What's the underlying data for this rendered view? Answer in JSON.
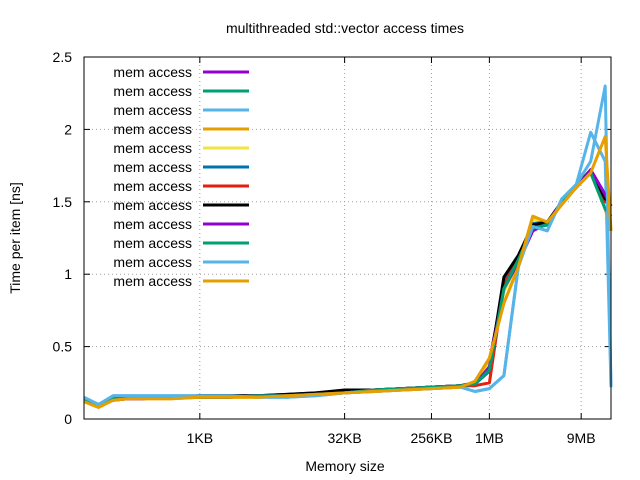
{
  "chart_data": {
    "type": "line",
    "title": "multithreaded std::vector access times",
    "xlabel": "Memory size",
    "ylabel": "Time per item [ns]",
    "x_scale": "log2",
    "x_ticks": [
      {
        "label": "1KB",
        "x": 10
      },
      {
        "label": "32KB",
        "x": 15
      },
      {
        "label": "256KB",
        "x": 18
      },
      {
        "label": "1MB",
        "x": 20
      },
      {
        "label": "9MB",
        "x": 23.17
      }
    ],
    "xlim": [
      6,
      24.2
    ],
    "ylim": [
      0,
      2.5
    ],
    "y_ticks": [
      0,
      0.5,
      1,
      1.5,
      2,
      2.5
    ],
    "grid": true,
    "legend_position": "top-left",
    "x": [
      6,
      6.5,
      7,
      7.5,
      8,
      9,
      10,
      11,
      12,
      13,
      14,
      15,
      16,
      17,
      18,
      19,
      19.5,
      20,
      20.5,
      21,
      21.5,
      22,
      22.5,
      23,
      23.5,
      24,
      24.2
    ],
    "series": [
      {
        "name": "mem access",
        "color": "#9400d3",
        "values": [
          0.13,
          0.09,
          0.13,
          0.14,
          0.14,
          0.15,
          0.15,
          0.15,
          0.16,
          0.16,
          0.17,
          0.18,
          0.2,
          0.21,
          0.22,
          0.23,
          0.25,
          0.4,
          0.92,
          1.08,
          1.3,
          1.35,
          1.5,
          1.6,
          1.72,
          1.55,
          1.47
        ]
      },
      {
        "name": "mem access",
        "color": "#009e73",
        "values": [
          0.14,
          0.1,
          0.14,
          0.14,
          0.15,
          0.15,
          0.15,
          0.15,
          0.16,
          0.16,
          0.17,
          0.18,
          0.2,
          0.21,
          0.22,
          0.23,
          0.24,
          0.35,
          0.9,
          1.1,
          1.32,
          1.34,
          1.49,
          1.6,
          1.7,
          1.45,
          1.4
        ]
      },
      {
        "name": "mem access",
        "color": "#56b4e9",
        "values": [
          0.15,
          0.1,
          0.16,
          0.16,
          0.16,
          0.16,
          0.16,
          0.16,
          0.15,
          0.15,
          0.16,
          0.18,
          0.19,
          0.2,
          0.21,
          0.22,
          0.19,
          0.21,
          0.3,
          1.05,
          1.33,
          1.3,
          1.52,
          1.62,
          1.98,
          1.78,
          0.22
        ]
      },
      {
        "name": "mem access",
        "color": "#e69f00",
        "values": [
          0.12,
          0.08,
          0.13,
          0.14,
          0.14,
          0.14,
          0.15,
          0.15,
          0.15,
          0.16,
          0.17,
          0.18,
          0.19,
          0.2,
          0.21,
          0.22,
          0.26,
          0.42,
          0.8,
          1.05,
          1.4,
          1.36,
          1.48,
          1.6,
          1.7,
          1.45,
          1.3
        ]
      },
      {
        "name": "mem access",
        "color": "#f0e442",
        "values": [
          0.13,
          0.09,
          0.13,
          0.14,
          0.15,
          0.15,
          0.15,
          0.15,
          0.16,
          0.16,
          0.17,
          0.18,
          0.2,
          0.21,
          0.22,
          0.23,
          0.25,
          0.38,
          0.88,
          1.08,
          1.38,
          1.36,
          1.49,
          1.6,
          1.7,
          1.48,
          1.45
        ]
      },
      {
        "name": "mem access",
        "color": "#0072b2",
        "values": [
          0.14,
          0.1,
          0.14,
          0.15,
          0.15,
          0.15,
          0.16,
          0.16,
          0.16,
          0.17,
          0.18,
          0.19,
          0.2,
          0.21,
          0.22,
          0.23,
          0.24,
          0.33,
          0.95,
          1.12,
          1.35,
          1.36,
          1.5,
          1.61,
          1.71,
          1.5,
          1.5
        ]
      },
      {
        "name": "mem access",
        "color": "#e51e10",
        "values": [
          0.13,
          0.09,
          0.14,
          0.14,
          0.15,
          0.15,
          0.15,
          0.15,
          0.16,
          0.16,
          0.17,
          0.18,
          0.2,
          0.21,
          0.22,
          0.23,
          0.23,
          0.25,
          0.93,
          1.1,
          1.33,
          1.35,
          1.5,
          1.6,
          1.7,
          1.5,
          1.5
        ]
      },
      {
        "name": "mem access",
        "color": "#000000",
        "values": [
          0.14,
          0.1,
          0.14,
          0.15,
          0.15,
          0.15,
          0.16,
          0.16,
          0.16,
          0.17,
          0.18,
          0.2,
          0.2,
          0.21,
          0.22,
          0.23,
          0.25,
          0.35,
          0.98,
          1.13,
          1.34,
          1.36,
          1.5,
          1.61,
          1.72,
          1.52,
          1.5
        ]
      },
      {
        "name": "mem access",
        "color": "#9400d3",
        "values": [
          0.13,
          0.09,
          0.13,
          0.14,
          0.14,
          0.15,
          0.15,
          0.15,
          0.16,
          0.16,
          0.17,
          0.18,
          0.2,
          0.21,
          0.22,
          0.23,
          0.24,
          0.36,
          0.9,
          1.08,
          1.3,
          1.35,
          1.5,
          1.6,
          1.72,
          1.55,
          1.47
        ]
      },
      {
        "name": "mem access",
        "color": "#009e73",
        "values": [
          0.14,
          0.1,
          0.14,
          0.14,
          0.15,
          0.15,
          0.15,
          0.15,
          0.16,
          0.16,
          0.17,
          0.18,
          0.2,
          0.21,
          0.22,
          0.23,
          0.24,
          0.34,
          0.9,
          1.1,
          1.32,
          1.34,
          1.49,
          1.6,
          1.7,
          1.45,
          1.4
        ]
      },
      {
        "name": "mem access",
        "color": "#56b4e9",
        "values": [
          0.15,
          0.1,
          0.16,
          0.16,
          0.16,
          0.16,
          0.16,
          0.16,
          0.15,
          0.15,
          0.16,
          0.18,
          0.19,
          0.2,
          0.21,
          0.22,
          0.19,
          0.21,
          0.3,
          1.05,
          1.33,
          1.3,
          1.52,
          1.62,
          1.78,
          2.3,
          0.22
        ]
      },
      {
        "name": "mem access",
        "color": "#e69f00",
        "values": [
          0.12,
          0.08,
          0.13,
          0.14,
          0.14,
          0.14,
          0.15,
          0.15,
          0.15,
          0.16,
          0.17,
          0.18,
          0.19,
          0.2,
          0.21,
          0.22,
          0.26,
          0.42,
          0.8,
          1.05,
          1.4,
          1.36,
          1.48,
          1.6,
          1.7,
          1.95,
          1.3
        ]
      }
    ]
  }
}
